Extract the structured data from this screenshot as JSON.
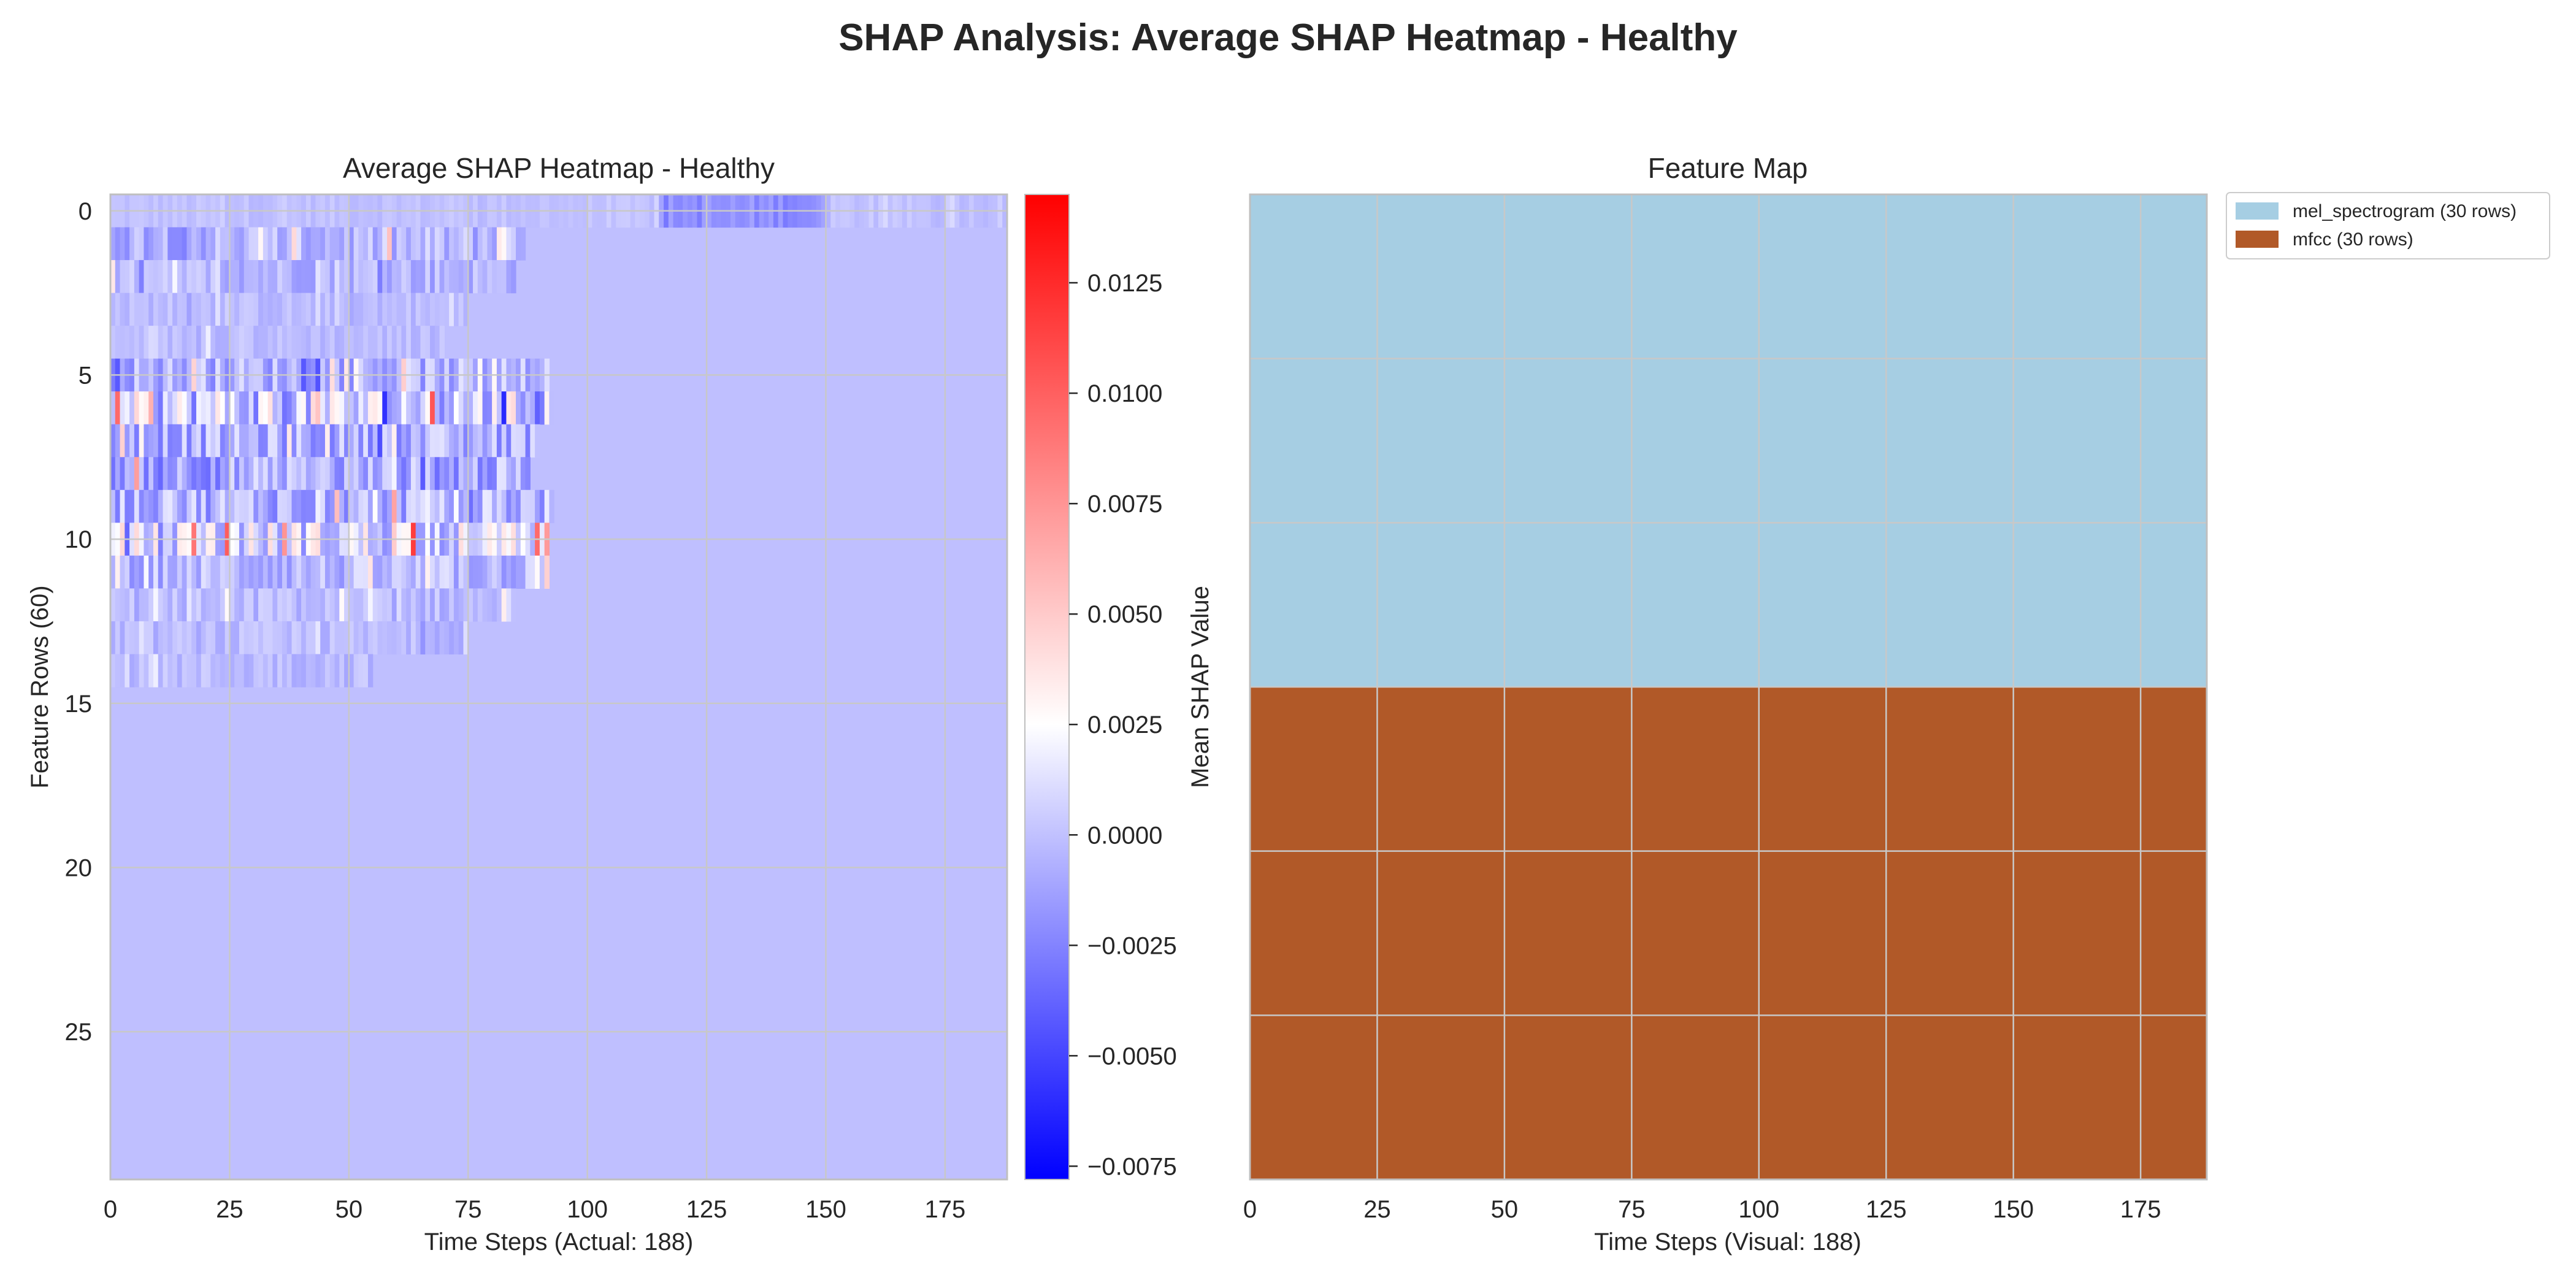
{
  "title": "SHAP Analysis: Average SHAP Heatmap - Healthy",
  "colors": {
    "neg": "#0000ff",
    "zero": "#ffffff",
    "pos": "#ff0000",
    "grid": "#c8c8c8",
    "spine": "#bfbfbf",
    "text": "#262626"
  },
  "chart_data": [
    {
      "type": "heatmap",
      "title": "Average SHAP Heatmap - Healthy",
      "xlabel": "Time Steps (Actual: 188)",
      "ylabel": "Feature Rows (60)",
      "x_range": [
        0,
        188
      ],
      "y_range": [
        0,
        30
      ],
      "x_ticks": [
        0,
        25,
        50,
        75,
        100,
        125,
        150,
        175
      ],
      "y_ticks": [
        0,
        5,
        10,
        15,
        20,
        25
      ],
      "grid": true,
      "colormap": "bwr",
      "colorbar": {
        "label": "Mean SHAP Value",
        "vmin": -0.0078,
        "vmax": 0.0145,
        "center": 0.0025,
        "ticks": [
          0.0125,
          0.01,
          0.0075,
          0.005,
          0.0025,
          0.0,
          -0.0025,
          -0.005,
          -0.0075
        ],
        "tick_labels": [
          "0.0125",
          "0.0100",
          "0.0075",
          "0.0050",
          "0.0025",
          "0.0000",
          "−0.0025",
          "−0.0050",
          "−0.0075"
        ]
      },
      "background_value": -0.0001,
      "row_bands": [
        {
          "row": 0,
          "x_start": 0,
          "x_end": 188,
          "mean": 0.0,
          "amplitude": 0.001
        },
        {
          "row": 0,
          "x_start": 115,
          "x_end": 150,
          "mean": -0.002,
          "amplitude": 0.002
        },
        {
          "row": 1,
          "x_start": 0,
          "x_end": 87,
          "mean": -0.0005,
          "amplitude": 0.004
        },
        {
          "row": 2,
          "x_start": 0,
          "x_end": 85,
          "mean": -0.0004,
          "amplitude": 0.003
        },
        {
          "row": 3,
          "x_start": 0,
          "x_end": 75,
          "mean": -0.0002,
          "amplitude": 0.0015
        },
        {
          "row": 4,
          "x_start": 0,
          "x_end": 70,
          "mean": -0.0002,
          "amplitude": 0.0015
        },
        {
          "row": 5,
          "x_start": 0,
          "x_end": 92,
          "mean": -0.0006,
          "amplitude": 0.0045
        },
        {
          "row": 6,
          "x_start": 0,
          "x_end": 93,
          "mean": 0.0005,
          "amplitude": 0.0085
        },
        {
          "row": 7,
          "x_start": 0,
          "x_end": 90,
          "mean": -0.0008,
          "amplitude": 0.005
        },
        {
          "row": 8,
          "x_start": 0,
          "x_end": 88,
          "mean": -0.001,
          "amplitude": 0.0055
        },
        {
          "row": 9,
          "x_start": 0,
          "x_end": 93,
          "mean": -0.0005,
          "amplitude": 0.0055
        },
        {
          "row": 10,
          "x_start": 0,
          "x_end": 92,
          "mean": 0.001,
          "amplitude": 0.0075
        },
        {
          "row": 11,
          "x_start": 0,
          "x_end": 92,
          "mean": -0.0004,
          "amplitude": 0.004
        },
        {
          "row": 12,
          "x_start": 0,
          "x_end": 85,
          "mean": -0.0003,
          "amplitude": 0.0025
        },
        {
          "row": 13,
          "x_start": 0,
          "x_end": 75,
          "mean": -0.0003,
          "amplitude": 0.002
        },
        {
          "row": 14,
          "x_start": 0,
          "x_end": 55,
          "mean": -0.0002,
          "amplitude": 0.002
        }
      ]
    },
    {
      "type": "heatmap",
      "title": "Feature Map",
      "xlabel": "Time Steps (Visual: 188)",
      "ylabel": "",
      "x_range": [
        0,
        188
      ],
      "x_ticks": [
        0,
        25,
        50,
        75,
        100,
        125,
        150,
        175
      ],
      "grid": true,
      "legend_placement": "upper-right-outside",
      "regions": [
        {
          "name": "mel_spectrogram (30 rows)",
          "rows": 30,
          "color": "#a6cee3"
        },
        {
          "name": "mfcc (30 rows)",
          "rows": 30,
          "color": "#b15928"
        }
      ]
    }
  ]
}
